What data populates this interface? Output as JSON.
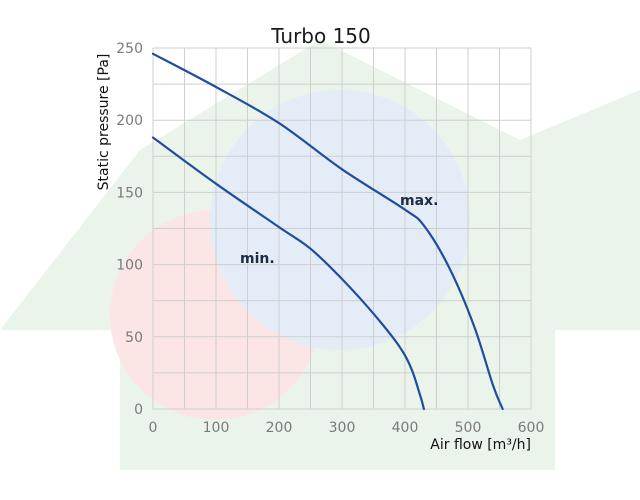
{
  "chart_data": {
    "type": "line",
    "title": "Turbo 150",
    "xlabel": "Air flow [m³/h]",
    "ylabel": "Static pressure [Pa]",
    "xlim": [
      0,
      600
    ],
    "ylim": [
      0,
      250
    ],
    "x_ticks": [
      0,
      100,
      200,
      300,
      400,
      500,
      600
    ],
    "y_ticks": [
      0,
      50,
      100,
      150,
      200,
      250
    ],
    "grid": true,
    "legend": "none",
    "line_color": "#1f4e9c",
    "series": [
      {
        "name": "max.",
        "points": [
          [
            0,
            246
          ],
          [
            100,
            223
          ],
          [
            200,
            198
          ],
          [
            300,
            166
          ],
          [
            400,
            138
          ],
          [
            430,
            127
          ],
          [
            470,
            98
          ],
          [
            510,
            57
          ],
          [
            540,
            16
          ],
          [
            555,
            0
          ]
        ]
      },
      {
        "name": "min.",
        "points": [
          [
            0,
            188
          ],
          [
            100,
            156
          ],
          [
            200,
            126
          ],
          [
            250,
            111
          ],
          [
            300,
            90
          ],
          [
            350,
            66
          ],
          [
            390,
            44
          ],
          [
            410,
            28
          ],
          [
            425,
            8
          ],
          [
            430,
            0
          ]
        ]
      }
    ]
  },
  "watermark": {
    "house_color": "#eaf4ea",
    "cold_color": "#e3ecf7",
    "warm_color": "#fbe5e5"
  }
}
